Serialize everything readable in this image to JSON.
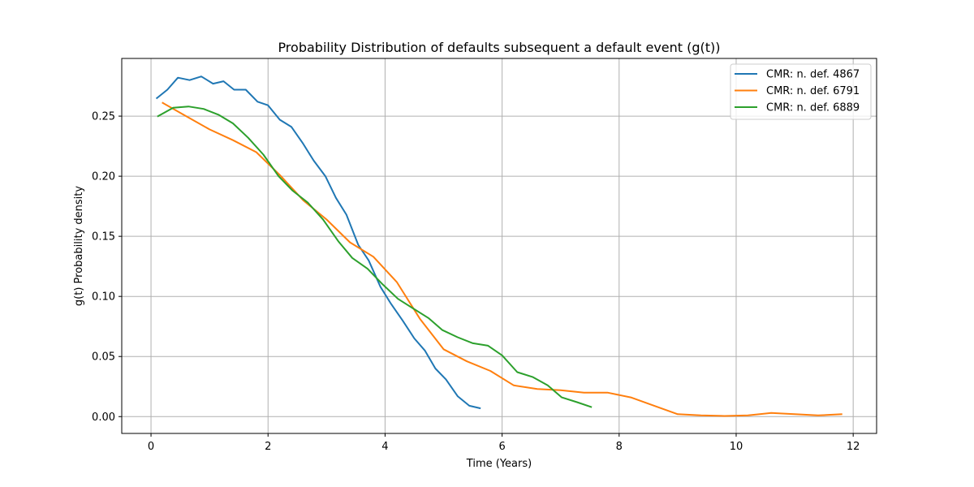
{
  "chart_data": {
    "type": "line",
    "title": "Probability Distribution of defaults subsequent a default event (g(t))",
    "xlabel": "Time (Years)",
    "ylabel": "g(t) Probability density",
    "xlim": [
      -0.5,
      12.4
    ],
    "ylim": [
      -0.014,
      0.298
    ],
    "xticks": [
      0,
      2,
      4,
      6,
      8,
      10,
      12
    ],
    "yticks": [
      0.0,
      0.05,
      0.1,
      0.15,
      0.2,
      0.25
    ],
    "xtick_labels": [
      "0",
      "2",
      "4",
      "6",
      "8",
      "10",
      "12"
    ],
    "ytick_labels": [
      "0.00",
      "0.05",
      "0.10",
      "0.15",
      "0.20",
      "0.25"
    ],
    "grid": true,
    "legend_position": "top-right",
    "series": [
      {
        "name": "CMR: n. def. 4867",
        "color": "#1f77b4",
        "x": [
          0.1,
          0.28,
          0.46,
          0.66,
          0.86,
          1.06,
          1.24,
          1.42,
          1.62,
          1.82,
          2.0,
          2.2,
          2.4,
          2.6,
          2.78,
          2.98,
          3.16,
          3.34,
          3.54,
          3.72,
          3.92,
          4.1,
          4.3,
          4.5,
          4.68,
          4.86,
          5.04,
          5.24,
          5.44,
          5.62
        ],
        "y": [
          0.265,
          0.272,
          0.282,
          0.28,
          0.283,
          0.277,
          0.279,
          0.272,
          0.272,
          0.262,
          0.259,
          0.247,
          0.241,
          0.227,
          0.213,
          0.2,
          0.182,
          0.168,
          0.143,
          0.13,
          0.108,
          0.094,
          0.08,
          0.065,
          0.055,
          0.04,
          0.031,
          0.017,
          0.009,
          0.007
        ]
      },
      {
        "name": "CMR: n. def. 6791",
        "color": "#ff7f0e",
        "x": [
          0.2,
          0.6,
          1.0,
          1.4,
          1.8,
          2.2,
          2.6,
          3.0,
          3.4,
          3.8,
          4.2,
          4.6,
          5.0,
          5.4,
          5.8,
          6.2,
          6.6,
          7.0,
          7.4,
          7.8,
          8.2,
          8.6,
          9.0,
          9.4,
          9.8,
          10.2,
          10.6,
          11.0,
          11.4,
          11.8
        ],
        "y": [
          0.261,
          0.25,
          0.239,
          0.23,
          0.22,
          0.201,
          0.18,
          0.164,
          0.145,
          0.133,
          0.112,
          0.081,
          0.056,
          0.046,
          0.038,
          0.026,
          0.023,
          0.022,
          0.02,
          0.02,
          0.016,
          0.009,
          0.002,
          0.001,
          0.0005,
          0.001,
          0.003,
          0.002,
          0.001,
          0.002
        ]
      },
      {
        "name": "CMR: n. def. 6889",
        "color": "#2ca02c",
        "x": [
          0.12,
          0.38,
          0.64,
          0.9,
          1.16,
          1.4,
          1.66,
          1.92,
          2.18,
          2.42,
          2.68,
          2.94,
          3.2,
          3.44,
          3.7,
          3.96,
          4.22,
          4.48,
          4.74,
          4.98,
          5.24,
          5.5,
          5.76,
          6.0,
          6.26,
          6.52,
          6.78,
          7.02,
          7.28,
          7.52
        ],
        "y": [
          0.25,
          0.257,
          0.258,
          0.256,
          0.251,
          0.244,
          0.232,
          0.218,
          0.2,
          0.188,
          0.178,
          0.164,
          0.146,
          0.132,
          0.123,
          0.11,
          0.098,
          0.09,
          0.082,
          0.072,
          0.066,
          0.061,
          0.059,
          0.051,
          0.037,
          0.033,
          0.026,
          0.016,
          0.012,
          0.008
        ]
      }
    ]
  }
}
